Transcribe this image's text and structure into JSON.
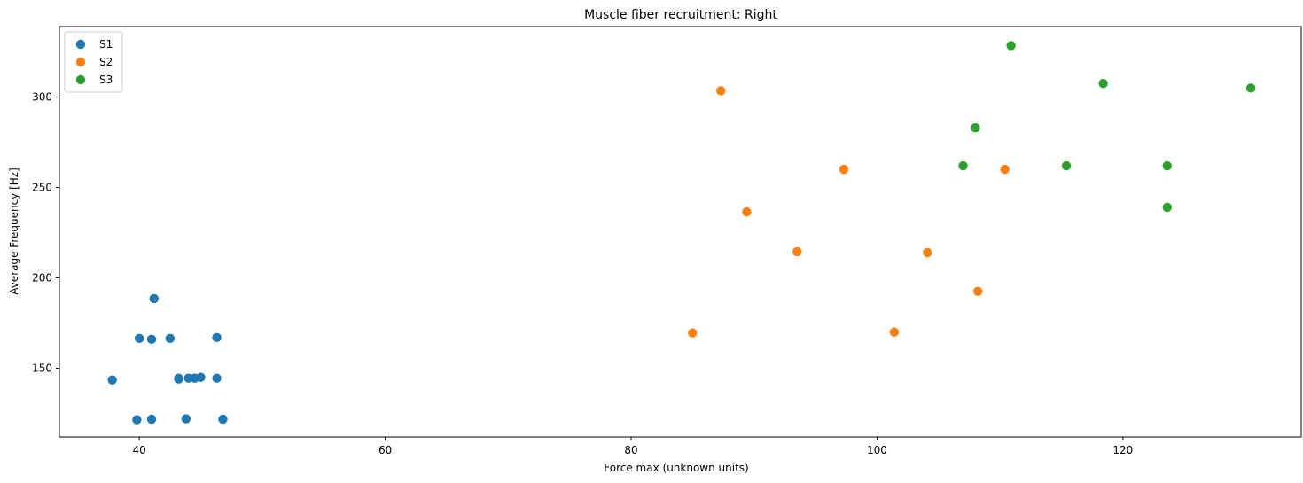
{
  "chart_data": {
    "type": "scatter",
    "title": "Muscle fiber recruitment: Right",
    "xlabel": "Force max (unknown units)",
    "ylabel": "Average Frequency [Hz]",
    "xlim": [
      33.5,
      134.5
    ],
    "ylim": [
      112,
      339
    ],
    "xticks": [
      40,
      60,
      80,
      100,
      120
    ],
    "yticks": [
      150,
      200,
      250,
      300
    ],
    "grid": false,
    "legend_position": "top-left",
    "series": [
      {
        "name": "S1",
        "color": "#1f77b4",
        "points": [
          [
            37.8,
            143.5
          ],
          [
            39.8,
            121.5
          ],
          [
            40.0,
            166.5
          ],
          [
            41.0,
            121.8
          ],
          [
            41.0,
            166.0
          ],
          [
            41.2,
            188.5
          ],
          [
            42.5,
            166.5
          ],
          [
            43.2,
            144.0
          ],
          [
            43.2,
            144.5
          ],
          [
            43.8,
            122.0
          ],
          [
            44.0,
            144.5
          ],
          [
            44.5,
            144.5
          ],
          [
            45.0,
            145.0
          ],
          [
            46.3,
            144.5
          ],
          [
            46.3,
            167.0
          ],
          [
            46.8,
            121.8
          ]
        ]
      },
      {
        "name": "S2",
        "color": "#ff7f0e",
        "points": [
          [
            85.0,
            169.5
          ],
          [
            87.3,
            303.5
          ],
          [
            89.4,
            236.5
          ],
          [
            93.5,
            214.5
          ],
          [
            97.3,
            260.0
          ],
          [
            101.4,
            170.0
          ],
          [
            104.1,
            214.0
          ],
          [
            108.2,
            192.5
          ],
          [
            110.4,
            260.0
          ]
        ]
      },
      {
        "name": "S3",
        "color": "#2ca02c",
        "points": [
          [
            107.0,
            262.0
          ],
          [
            108.0,
            283.0
          ],
          [
            110.9,
            328.5
          ],
          [
            115.4,
            262.0
          ],
          [
            118.4,
            307.5
          ],
          [
            123.6,
            262.0
          ],
          [
            123.6,
            239.0
          ],
          [
            130.4,
            305.0
          ]
        ]
      }
    ]
  }
}
